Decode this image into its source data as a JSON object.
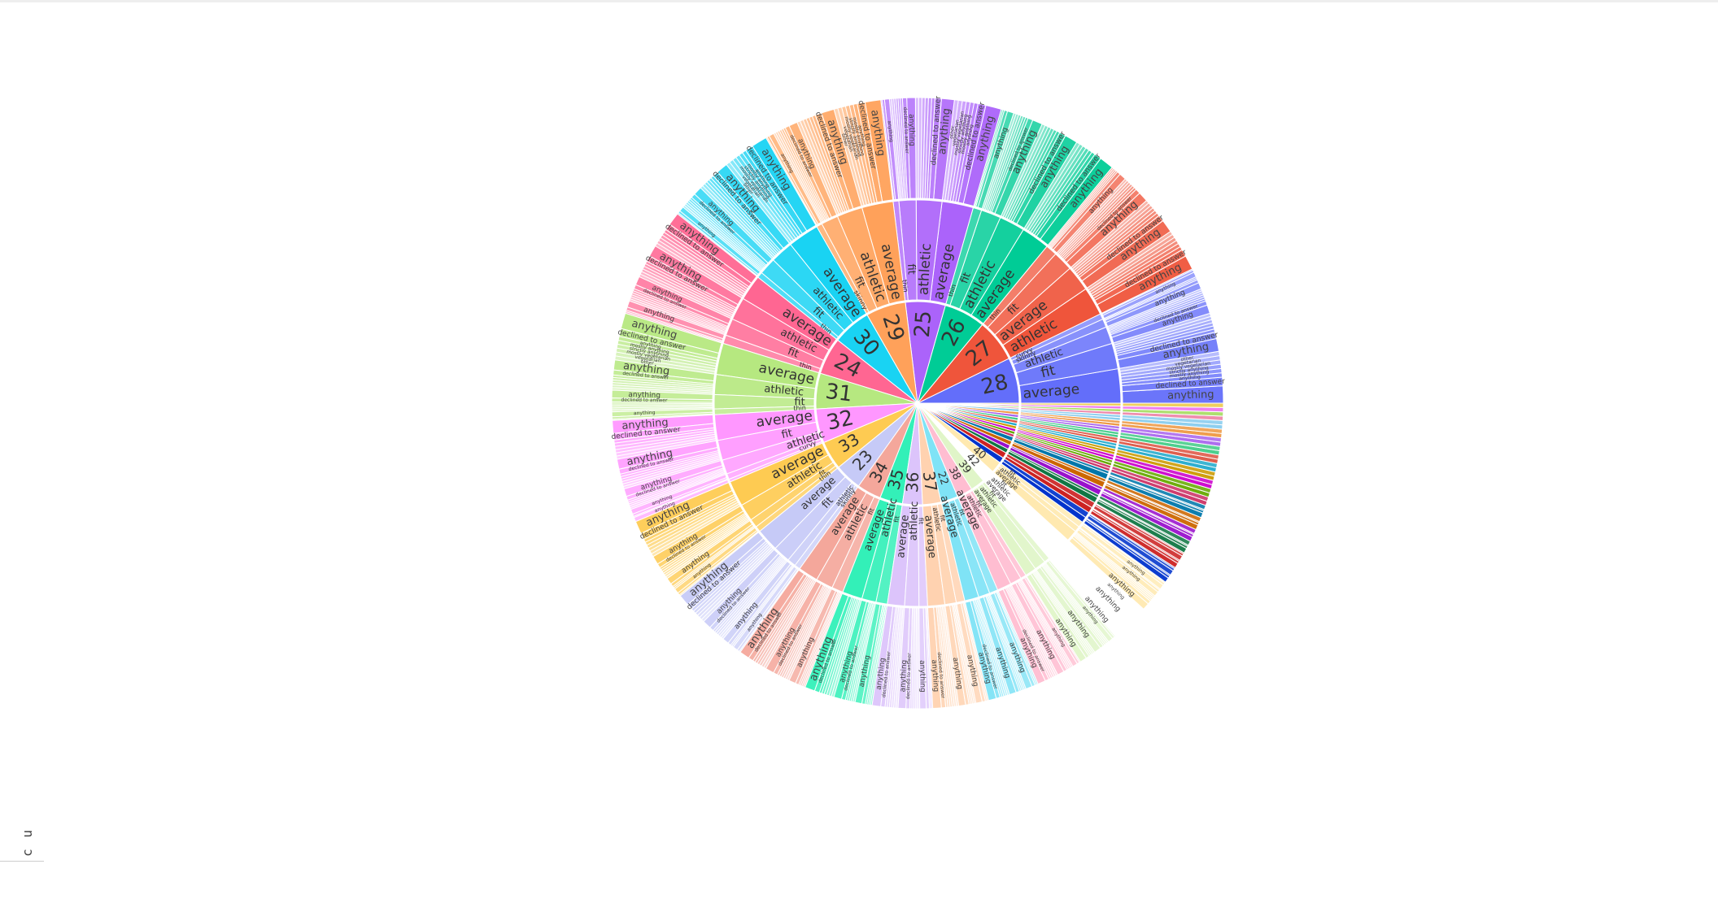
{
  "chart_data": {
    "type": "sunburst",
    "palette": [
      "#636efa",
      "#EF553B",
      "#00cc96",
      "#ab63fa",
      "#FFA15A",
      "#19d3f3",
      "#FF6692",
      "#B6E880",
      "#FF97FF",
      "#FECB52"
    ],
    "palette2": [
      "#6f78f5",
      "#e8604a",
      "#19b98c",
      "#b07ef0",
      "#f7a66a",
      "#2cc6e0",
      "#f3799e",
      "#c2e89a",
      "#f0a2f0",
      "#f5cf6a",
      "#0033cc",
      "#cc0000",
      "#007744",
      "#9900cc",
      "#cc6600",
      "#006699",
      "#cc3366",
      "#66aa00",
      "#cc00cc",
      "#cc9900"
    ],
    "ages": [
      {
        "label": "28",
        "value": 32,
        "color": "#636efa",
        "bodies": [
          {
            "label": "average",
            "value": 12
          },
          {
            "label": "fit",
            "value": 9
          },
          {
            "label": "athletic",
            "value": 6
          },
          {
            "label": "skinny",
            "value": 3
          },
          {
            "label": "curvy",
            "value": 2
          }
        ]
      },
      {
        "label": "27",
        "value": 30,
        "color": "#EF553B",
        "bodies": [
          {
            "label": "athletic",
            "value": 10
          },
          {
            "label": "average",
            "value": 9
          },
          {
            "label": "fit",
            "value": 7
          },
          {
            "label": "thin",
            "value": 4
          }
        ]
      },
      {
        "label": "26",
        "value": 29,
        "color": "#00cc96",
        "bodies": [
          {
            "label": "average",
            "value": 10
          },
          {
            "label": "athletic",
            "value": 9
          },
          {
            "label": "fit",
            "value": 7
          },
          {
            "label": "thin",
            "value": 3
          }
        ]
      },
      {
        "label": "25",
        "value": 28,
        "color": "#ab63fa",
        "bodies": [
          {
            "label": "average",
            "value": 11
          },
          {
            "label": "athletic",
            "value": 9
          },
          {
            "label": "fit",
            "value": 6
          },
          {
            "label": "thin",
            "value": 2
          }
        ]
      },
      {
        "label": "29",
        "value": 28,
        "color": "#FFA15A",
        "bodies": [
          {
            "label": "average",
            "value": 11
          },
          {
            "label": "athletic",
            "value": 9
          },
          {
            "label": "fit",
            "value": 6
          },
          {
            "label": "skinny",
            "value": 2
          }
        ]
      },
      {
        "label": "30",
        "value": 27,
        "color": "#19d3f3",
        "bodies": [
          {
            "label": "average",
            "value": 11
          },
          {
            "label": "athletic",
            "value": 8
          },
          {
            "label": "fit",
            "value": 6
          },
          {
            "label": "thin",
            "value": 2
          }
        ]
      },
      {
        "label": "24",
        "value": 26,
        "color": "#FF6692",
        "bodies": [
          {
            "label": "average",
            "value": 9
          },
          {
            "label": "athletic",
            "value": 8
          },
          {
            "label": "fit",
            "value": 6
          },
          {
            "label": "thin",
            "value": 3
          }
        ]
      },
      {
        "label": "31",
        "value": 25,
        "color": "#B6E880",
        "bodies": [
          {
            "label": "average",
            "value": 11
          },
          {
            "label": "athletic",
            "value": 7
          },
          {
            "label": "fit",
            "value": 5
          },
          {
            "label": "thin",
            "value": 2
          }
        ]
      },
      {
        "label": "32",
        "value": 24,
        "color": "#FF97FF",
        "bodies": [
          {
            "label": "average",
            "value": 9
          },
          {
            "label": "fit",
            "value": 7
          },
          {
            "label": "athletic",
            "value": 5
          },
          {
            "label": "curvy",
            "value": 2
          },
          {
            "label": "thin",
            "value": 1
          }
        ]
      },
      {
        "label": "33",
        "value": 20,
        "color": "#FECB52",
        "bodies": [
          {
            "label": "average",
            "value": 9
          },
          {
            "label": "athletic",
            "value": 6
          },
          {
            "label": "fit",
            "value": 3
          },
          {
            "label": "thin",
            "value": 2
          }
        ]
      },
      {
        "label": "23",
        "value": 19,
        "color": "#c6caf7",
        "bodies": [
          {
            "label": "average",
            "value": 8
          },
          {
            "label": "fit",
            "value": 6
          },
          {
            "label": "athletic",
            "value": 3
          },
          {
            "label": "skinny",
            "value": 2
          }
        ]
      },
      {
        "label": "34",
        "value": 17,
        "color": "#f4a79b",
        "bodies": [
          {
            "label": "average",
            "value": 7
          },
          {
            "label": "athletic",
            "value": 6
          },
          {
            "label": "fit",
            "value": 4
          }
        ]
      },
      {
        "label": "35",
        "value": 16,
        "color": "#33f0b8",
        "bodies": [
          {
            "label": "average",
            "value": 7
          },
          {
            "label": "athletic",
            "value": 5
          },
          {
            "label": "fit",
            "value": 4
          }
        ]
      },
      {
        "label": "36",
        "value": 14,
        "color": "#dcc4fb",
        "bodies": [
          {
            "label": "average",
            "value": 6
          },
          {
            "label": "athletic",
            "value": 5
          },
          {
            "label": "fit",
            "value": 3
          }
        ]
      },
      {
        "label": "37",
        "value": 13,
        "color": "#ffd2b0",
        "bodies": [
          {
            "label": "average",
            "value": 6
          },
          {
            "label": "athletic",
            "value": 4
          },
          {
            "label": "fit",
            "value": 3
          }
        ]
      },
      {
        "label": "22",
        "value": 12,
        "color": "#7fe3f6",
        "bodies": [
          {
            "label": "average",
            "value": 5
          },
          {
            "label": "athletic",
            "value": 4
          },
          {
            "label": "fit",
            "value": 3
          }
        ]
      },
      {
        "label": "38",
        "value": 11,
        "color": "#ffbdd1",
        "bodies": [
          {
            "label": "average",
            "value": 5
          },
          {
            "label": "athletic",
            "value": 4
          },
          {
            "label": "fit",
            "value": 2
          }
        ]
      },
      {
        "label": "39",
        "value": 10,
        "color": "#e0f5c8",
        "bodies": [
          {
            "label": "average",
            "value": 4
          },
          {
            "label": "athletic",
            "value": 4
          },
          {
            "label": "fit",
            "value": 2
          }
        ]
      },
      {
        "label": "42",
        "value": 9,
        "color": "#ffffff",
        "bodies": [
          {
            "label": "average",
            "value": 4
          },
          {
            "label": "athletic",
            "value": 3
          },
          {
            "label": "fit",
            "value": 2
          }
        ]
      },
      {
        "label": "40",
        "value": 8,
        "color": "#ffe9b0",
        "bodies": [
          {
            "label": "average",
            "value": 4
          },
          {
            "label": "athletic",
            "value": 2
          },
          {
            "label": "fit",
            "value": 2
          }
        ]
      },
      {
        "label": "",
        "value": 4,
        "color": "#0033cc",
        "bodies": [
          {
            "label": "",
            "value": 2
          },
          {
            "label": "",
            "value": 2
          }
        ]
      },
      {
        "label": "",
        "value": 4,
        "color": "#cc2222",
        "bodies": [
          {
            "label": "",
            "value": 2
          },
          {
            "label": "",
            "value": 2
          }
        ]
      },
      {
        "label": "",
        "value": 3,
        "color": "#117744",
        "bodies": [
          {
            "label": "",
            "value": 2
          },
          {
            "label": "",
            "value": 1
          }
        ]
      },
      {
        "label": "",
        "value": 3,
        "color": "#9911cc",
        "bodies": [
          {
            "label": "",
            "value": 2
          },
          {
            "label": "",
            "value": 1
          }
        ]
      },
      {
        "label": "",
        "value": 3,
        "color": "#cc6600",
        "bodies": [
          {
            "label": "",
            "value": 2
          },
          {
            "label": "",
            "value": 1
          }
        ]
      },
      {
        "label": "",
        "value": 3,
        "color": "#0077aa",
        "bodies": [
          {
            "label": "",
            "value": 2
          },
          {
            "label": "",
            "value": 1
          }
        ]
      },
      {
        "label": "",
        "value": 2,
        "color": "#cc3366",
        "bodies": [
          {
            "label": "",
            "value": 1
          },
          {
            "label": "",
            "value": 1
          }
        ]
      },
      {
        "label": "",
        "value": 2,
        "color": "#66aa00",
        "bodies": [
          {
            "label": "",
            "value": 1
          },
          {
            "label": "",
            "value": 1
          }
        ]
      },
      {
        "label": "",
        "value": 2,
        "color": "#cc00cc",
        "bodies": [
          {
            "label": "",
            "value": 1
          },
          {
            "label": "",
            "value": 1
          }
        ]
      },
      {
        "label": "",
        "value": 2,
        "color": "#cc9900",
        "bodies": [
          {
            "label": "",
            "value": 1
          },
          {
            "label": "",
            "value": 1
          }
        ]
      },
      {
        "label": "",
        "value": 2,
        "color": "#22aacc",
        "bodies": [
          {
            "label": "",
            "value": 1
          },
          {
            "label": "",
            "value": 1
          }
        ]
      },
      {
        "label": "",
        "value": 2,
        "color": "#dd5544",
        "bodies": [
          {
            "label": "",
            "value": 1
          },
          {
            "label": "",
            "value": 1
          }
        ]
      },
      {
        "label": "",
        "value": 2,
        "color": "#44cc88",
        "bodies": [
          {
            "label": "",
            "value": 1
          },
          {
            "label": "",
            "value": 1
          }
        ]
      },
      {
        "label": "",
        "value": 2,
        "color": "#aa66ee",
        "bodies": [
          {
            "label": "",
            "value": 1
          },
          {
            "label": "",
            "value": 1
          }
        ]
      },
      {
        "label": "",
        "value": 2,
        "color": "#ee9944",
        "bodies": [
          {
            "label": "",
            "value": 1
          },
          {
            "label": "",
            "value": 1
          }
        ]
      },
      {
        "label": "",
        "value": 2,
        "color": "#88ccee",
        "bodies": [
          {
            "label": "",
            "value": 1
          },
          {
            "label": "",
            "value": 1
          }
        ]
      },
      {
        "label": "",
        "value": 1,
        "color": "#ee88aa",
        "bodies": [
          {
            "label": "",
            "value": 1
          }
        ]
      },
      {
        "label": "",
        "value": 1,
        "color": "#aadd66",
        "bodies": [
          {
            "label": "",
            "value": 1
          }
        ]
      },
      {
        "label": "",
        "value": 1,
        "color": "#ee77ee",
        "bodies": [
          {
            "label": "",
            "value": 1
          }
        ]
      },
      {
        "label": "",
        "value": 1,
        "color": "#eecc55",
        "bodies": [
          {
            "label": "",
            "value": 1
          }
        ]
      }
    ],
    "diet_labels": [
      "anything",
      "declined to answer",
      "anything",
      "mostly anything",
      "strictly anything",
      "mostly vegetarian",
      "vegetarian",
      "other"
    ],
    "outer_unlabeled_share": 0.25
  },
  "corner": {
    "text": "c u"
  }
}
